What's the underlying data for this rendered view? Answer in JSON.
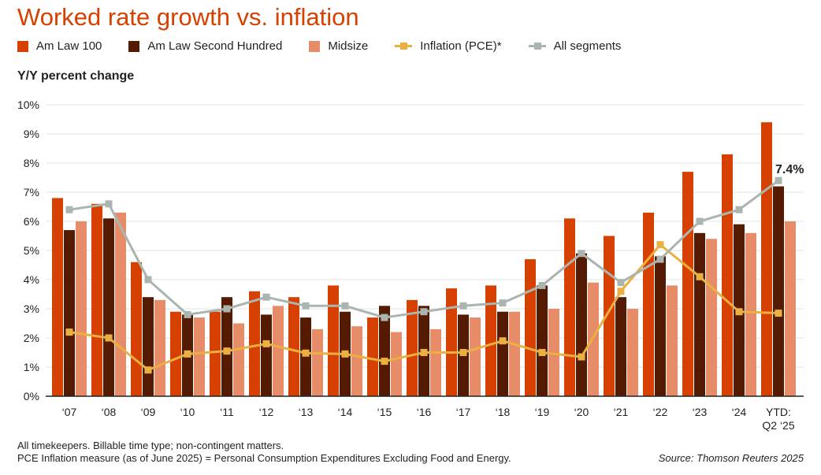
{
  "chart_data": {
    "type": "bar",
    "title": "Worked rate growth vs. inflation",
    "ylabel": "Y/Y percent change",
    "ylim": [
      0,
      10
    ],
    "yticks": [
      "0%",
      "1%",
      "2%",
      "3%",
      "4%",
      "5%",
      "6%",
      "7%",
      "8%",
      "9%",
      "10%"
    ],
    "categories": [
      "‘07",
      "‘08",
      "‘09",
      "‘10",
      "‘11",
      "‘12",
      "‘13",
      "‘14",
      "‘15",
      "‘16",
      "‘17",
      "‘18",
      "‘19",
      "‘20",
      "‘21",
      "‘22",
      "‘23",
      "‘24",
      "YTD: Q2 ‘25"
    ],
    "series": [
      {
        "name": "Am Law 100",
        "kind": "bar",
        "color": "#d64101",
        "values": [
          6.8,
          6.6,
          4.6,
          2.9,
          2.9,
          3.6,
          3.4,
          3.8,
          2.7,
          3.3,
          3.7,
          3.8,
          4.7,
          6.1,
          5.5,
          6.3,
          7.7,
          8.3,
          9.4
        ]
      },
      {
        "name": "Am Law Second Hundred",
        "kind": "bar",
        "color": "#541a02",
        "values": [
          5.7,
          6.1,
          3.4,
          2.8,
          3.4,
          2.8,
          2.7,
          2.9,
          3.1,
          3.1,
          2.8,
          2.9,
          3.8,
          4.9,
          3.4,
          4.8,
          5.6,
          5.9,
          7.2
        ]
      },
      {
        "name": "Midsize",
        "kind": "bar",
        "color": "#e68c68",
        "values": [
          6.0,
          6.3,
          3.3,
          2.7,
          2.5,
          3.1,
          2.3,
          2.4,
          2.2,
          2.3,
          2.7,
          2.9,
          3.0,
          3.9,
          3.0,
          3.8,
          5.4,
          5.6,
          6.0
        ]
      },
      {
        "name": "Inflation (PCE)*",
        "kind": "line",
        "color": "#eab042",
        "values": [
          2.2,
          2.0,
          0.9,
          1.45,
          1.55,
          1.8,
          1.48,
          1.45,
          1.2,
          1.5,
          1.5,
          1.9,
          1.5,
          1.35,
          3.6,
          5.2,
          4.1,
          2.9,
          2.85
        ]
      },
      {
        "name": "All segments",
        "kind": "line",
        "color": "#aab5b0",
        "values": [
          6.4,
          6.6,
          4.0,
          2.8,
          3.0,
          3.4,
          3.1,
          3.1,
          2.7,
          2.9,
          3.1,
          3.2,
          3.8,
          4.9,
          3.9,
          4.7,
          6.0,
          6.4,
          7.4
        ]
      }
    ],
    "annotation": "7.4%",
    "grid": true,
    "legend": "top-left"
  },
  "footnotes": [
    "All timekeepers. Billable time type; non-contingent matters.",
    "PCE Inflation measure (as of June 2025) =  Personal Consumption Expenditures Excluding Food and Energy."
  ],
  "source": "Source: Thomson Reuters 2025"
}
